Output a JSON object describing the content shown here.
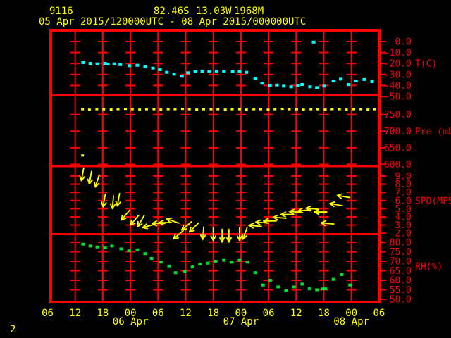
{
  "header": {
    "station_id": "9116",
    "latitude": "82.46S",
    "longitude": "13.03W",
    "elevation": "1968M",
    "time_range": "05 Apr 2015/120000UTC - 08 Apr 2015/000000UTC"
  },
  "page_number": "2",
  "colors": {
    "background": "#000000",
    "frame": "#ff0000",
    "axis_text": "#ff0000",
    "header_text": "#ffff00",
    "temperature": "#00ffff",
    "pressure": "#ffff00",
    "wind": "#ffff00",
    "humidity": "#00dd33"
  },
  "chart_data": {
    "type": "meteogram",
    "title": "05 Apr 2015/120000UTC - 08 Apr 2015/000000UTC",
    "x_axis": {
      "hours_start": 0,
      "hours_end": 72,
      "gridline_hours": [
        6,
        12,
        18,
        24,
        30,
        36,
        42,
        48,
        54,
        60,
        66
      ],
      "hour_labels": [
        "06",
        "12",
        "18",
        "00",
        "06",
        "12",
        "18",
        "00",
        "06",
        "12",
        "18",
        "00",
        "06"
      ],
      "date_labels": [
        {
          "label": "06 Apr",
          "hour": 18
        },
        {
          "label": "07 Apr",
          "hour": 42
        },
        {
          "label": "08 Apr",
          "hour": 66
        }
      ]
    },
    "panels": [
      {
        "id": "temperature",
        "unit_label": "T(C)",
        "tick_labels": [
          "0.0",
          "-10.0",
          "-20.0",
          "-30.0",
          "-40.0",
          "-50.0"
        ],
        "tick_values": [
          0,
          -10,
          -20,
          -30,
          -40,
          -50
        ],
        "marker": "square",
        "points": [
          [
            7.7,
            -19.2
          ],
          [
            9.3,
            -19.9
          ],
          [
            10.8,
            -20.3
          ],
          [
            12.5,
            -19.9
          ],
          [
            13.1,
            -20.5
          ],
          [
            14.5,
            -20.3
          ],
          [
            15.8,
            -21.0
          ],
          [
            17.8,
            -22.0
          ],
          [
            19.5,
            -21.6
          ],
          [
            21.2,
            -23.1
          ],
          [
            22.9,
            -24.2
          ],
          [
            24.4,
            -25.6
          ],
          [
            25.9,
            -28.0
          ],
          [
            27.5,
            -29.7
          ],
          [
            29.2,
            -31.6
          ],
          [
            30.5,
            -28.4
          ],
          [
            32.1,
            -27.4
          ],
          [
            33.6,
            -26.9
          ],
          [
            35.1,
            -27.4
          ],
          [
            36.7,
            -26.9
          ],
          [
            38.3,
            -26.9
          ],
          [
            40.2,
            -27.4
          ],
          [
            41.7,
            -26.9
          ],
          [
            43.2,
            -28.0
          ],
          [
            45.1,
            -33.8
          ],
          [
            46.6,
            -38.0
          ],
          [
            48.3,
            -40.2
          ],
          [
            49.8,
            -39.6
          ],
          [
            51.3,
            -40.6
          ],
          [
            52.9,
            -41.2
          ],
          [
            54.4,
            -40.2
          ],
          [
            55.3,
            -39.1
          ],
          [
            57.0,
            -41.2
          ],
          [
            57.8,
            -0.5
          ],
          [
            58.5,
            -41.9
          ],
          [
            60.1,
            -40.6
          ],
          [
            62.1,
            -35.9
          ],
          [
            63.7,
            -34.2
          ],
          [
            65.4,
            -39.1
          ],
          [
            67.0,
            -35.9
          ],
          [
            68.8,
            -34.6
          ],
          [
            70.5,
            -36.5
          ]
        ]
      },
      {
        "id": "pressure",
        "unit_label": "Pre (mb)",
        "tick_labels": [
          "750.0",
          "700.0",
          "650.0",
          "600.0"
        ],
        "tick_values": [
          750,
          700,
          650,
          600
        ],
        "marker": "square",
        "points": [
          [
            7.6,
            627
          ],
          [
            7.6,
            766
          ],
          [
            9.1,
            765
          ],
          [
            10.7,
            766
          ],
          [
            12.2,
            766
          ],
          [
            13.8,
            765
          ],
          [
            15.3,
            766
          ],
          [
            16.9,
            767
          ],
          [
            18.4,
            766
          ],
          [
            20.0,
            765
          ],
          [
            21.5,
            766
          ],
          [
            23.1,
            766
          ],
          [
            24.6,
            765
          ],
          [
            26.2,
            766
          ],
          [
            27.7,
            766
          ],
          [
            29.3,
            767
          ],
          [
            30.8,
            766
          ],
          [
            32.4,
            765
          ],
          [
            33.9,
            766
          ],
          [
            35.5,
            766
          ],
          [
            37.0,
            766
          ],
          [
            38.6,
            765
          ],
          [
            40.1,
            766
          ],
          [
            41.7,
            766
          ],
          [
            43.2,
            765
          ],
          [
            44.8,
            766
          ],
          [
            46.3,
            766
          ],
          [
            47.9,
            765
          ],
          [
            49.4,
            766
          ],
          [
            51.0,
            767
          ],
          [
            52.5,
            766
          ],
          [
            54.1,
            766
          ],
          [
            55.6,
            765
          ],
          [
            57.2,
            766
          ],
          [
            58.7,
            766
          ],
          [
            60.3,
            765
          ],
          [
            61.8,
            766
          ],
          [
            63.4,
            766
          ],
          [
            64.9,
            765
          ],
          [
            66.5,
            766
          ],
          [
            68.0,
            766
          ],
          [
            69.6,
            765
          ],
          [
            71.1,
            766
          ]
        ]
      },
      {
        "id": "wind",
        "unit_label": "SPD(MPS)",
        "tick_labels": [
          "9.0",
          "8.0",
          "7.0",
          "6.0",
          "5.0",
          "4.0",
          "3.0",
          "2.0"
        ],
        "tick_values": [
          9,
          8,
          7,
          6,
          5,
          4,
          3,
          2
        ],
        "marker": "arrow",
        "points": [
          [
            7.6,
            9.2,
            100
          ],
          [
            9.3,
            8.8,
            100
          ],
          [
            10.8,
            8.4,
            108
          ],
          [
            12.3,
            6.0,
            100
          ],
          [
            14.2,
            5.8,
            95
          ],
          [
            15.4,
            6.1,
            100
          ],
          [
            16.9,
            4.2,
            130
          ],
          [
            18.9,
            3.6,
            130
          ],
          [
            20.3,
            3.5,
            120
          ],
          [
            22.0,
            2.9,
            165
          ],
          [
            24.1,
            3.2,
            180
          ],
          [
            25.6,
            3.3,
            180
          ],
          [
            27.2,
            3.5,
            200
          ],
          [
            28.4,
            1.8,
            140
          ],
          [
            30.2,
            2.9,
            140
          ],
          [
            31.8,
            2.7,
            135
          ],
          [
            33.8,
            2.0,
            95
          ],
          [
            36.0,
            1.9,
            90
          ],
          [
            37.9,
            1.7,
            90
          ],
          [
            39.4,
            1.7,
            90
          ],
          [
            41.7,
            1.9,
            90
          ],
          [
            42.9,
            2.0,
            110
          ],
          [
            45.1,
            2.9,
            185
          ],
          [
            46.6,
            3.3,
            185
          ],
          [
            48.3,
            3.5,
            180
          ],
          [
            50.4,
            3.9,
            185
          ],
          [
            52.1,
            4.3,
            180
          ],
          [
            53.9,
            4.6,
            185
          ],
          [
            55.8,
            4.8,
            175
          ],
          [
            57.5,
            5.0,
            185
          ],
          [
            59.3,
            4.6,
            180
          ],
          [
            60.8,
            3.2,
            185
          ],
          [
            62.7,
            5.5,
            190
          ],
          [
            64.3,
            6.5,
            190
          ]
        ]
      },
      {
        "id": "humidity",
        "unit_label": "RH(%)",
        "tick_labels": [
          "80.0",
          "75.0",
          "70.0",
          "65.0",
          "60.0",
          "55.0",
          "50.0"
        ],
        "tick_values": [
          80,
          75,
          70,
          65,
          60,
          55,
          50
        ],
        "marker": "square",
        "points": [
          [
            7.7,
            79.0
          ],
          [
            9.3,
            78.0
          ],
          [
            10.8,
            77.5
          ],
          [
            12.5,
            77.0
          ],
          [
            14.0,
            78.0
          ],
          [
            16.0,
            76.5
          ],
          [
            17.7,
            75.5
          ],
          [
            19.5,
            76.0
          ],
          [
            21.2,
            74.0
          ],
          [
            22.6,
            71.5
          ],
          [
            24.6,
            69.5
          ],
          [
            26.4,
            67.5
          ],
          [
            27.8,
            64.0
          ],
          [
            29.8,
            64.5
          ],
          [
            31.5,
            67.0
          ],
          [
            33.1,
            68.5
          ],
          [
            34.8,
            69.0
          ],
          [
            36.5,
            70.0
          ],
          [
            38.3,
            70.5
          ],
          [
            40.0,
            69.5
          ],
          [
            41.7,
            70.5
          ],
          [
            43.4,
            69.5
          ],
          [
            45.1,
            64.0
          ],
          [
            46.8,
            57.5
          ],
          [
            48.4,
            60.0
          ],
          [
            50.1,
            56.5
          ],
          [
            51.8,
            54.5
          ],
          [
            53.5,
            56.5
          ],
          [
            55.3,
            58.0
          ],
          [
            56.9,
            55.5
          ],
          [
            58.5,
            55.0
          ],
          [
            59.8,
            55.5
          ],
          [
            60.4,
            55.5
          ],
          [
            62.1,
            60.5
          ],
          [
            63.9,
            63.0
          ],
          [
            65.7,
            57.5
          ]
        ]
      }
    ]
  }
}
